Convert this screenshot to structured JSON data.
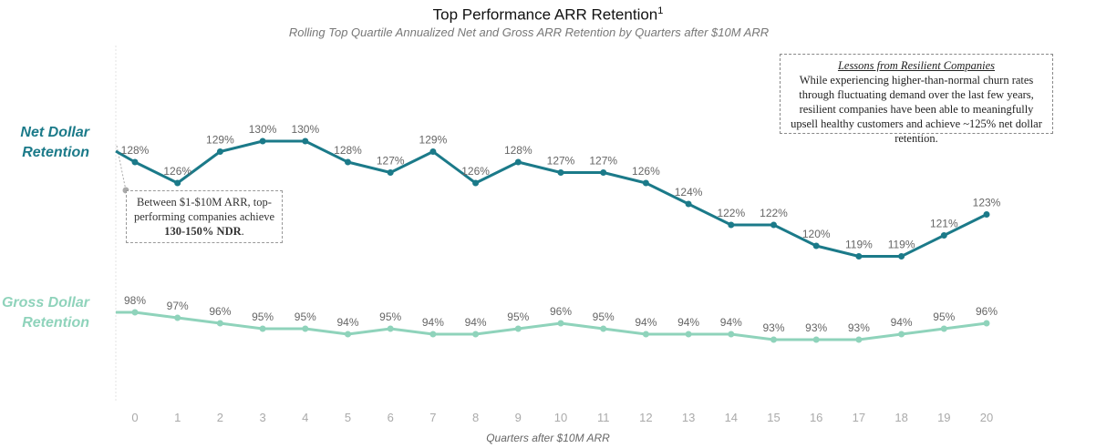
{
  "chart_data": {
    "type": "line",
    "title": "Top Performance ARR Retention",
    "title_superscript": "1",
    "subtitle": "Rolling Top Quartile Annualized Net and Gross ARR Retention by Quarters after $10M ARR",
    "xlabel": "Quarters after $10M ARR",
    "categories": [
      "0",
      "1",
      "2",
      "3",
      "4",
      "5",
      "6",
      "7",
      "8",
      "9",
      "10",
      "11",
      "12",
      "13",
      "14",
      "15",
      "16",
      "17",
      "18",
      "19",
      "20"
    ],
    "series": [
      {
        "name": "Net Dollar Retention",
        "values": [
          128,
          126,
          129,
          130,
          130,
          128,
          127,
          129,
          126,
          128,
          127,
          127,
          126,
          124,
          122,
          122,
          120,
          119,
          119,
          121,
          123
        ],
        "labels": [
          "128%",
          "126%",
          "129%",
          "130%",
          "130%",
          "128%",
          "127%",
          "129%",
          "126%",
          "128%",
          "127%",
          "127%",
          "126%",
          "124%",
          "122%",
          "122%",
          "120%",
          "119%",
          "119%",
          "121%",
          "123%"
        ],
        "color": "#1b7a89"
      },
      {
        "name": "Gross Dollar Retention",
        "values": [
          98,
          97,
          96,
          95,
          95,
          94,
          95,
          94,
          94,
          95,
          96,
          95,
          94,
          94,
          94,
          93,
          93,
          93,
          94,
          95,
          96
        ],
        "labels": [
          "98%",
          "97%",
          "96%",
          "95%",
          "95%",
          "94%",
          "95%",
          "94%",
          "94%",
          "95%",
          "96%",
          "95%",
          "94%",
          "94%",
          "94%",
          "93%",
          "93%",
          "93%",
          "94%",
          "95%",
          "96%"
        ],
        "color": "#8fd3bb"
      }
    ],
    "grid": false,
    "legend": "left"
  },
  "labels": {
    "net_line1": "Net Dollar",
    "net_line2": "Retention",
    "gross_line1": "Gross Dollar",
    "gross_line2": "Retention"
  },
  "lessons": {
    "heading": "Lessons from Resilient Companies",
    "body": "While experiencing higher-than-normal churn rates through fluctuating demand over the last few years, resilient companies have been able to meaningfully upsell healthy customers and achieve ~125% net dollar retention."
  },
  "callout": {
    "text": "Between $1-$10M ARR, top-performing companies achieve ",
    "bold": "130-150% NDR",
    "end": "."
  }
}
